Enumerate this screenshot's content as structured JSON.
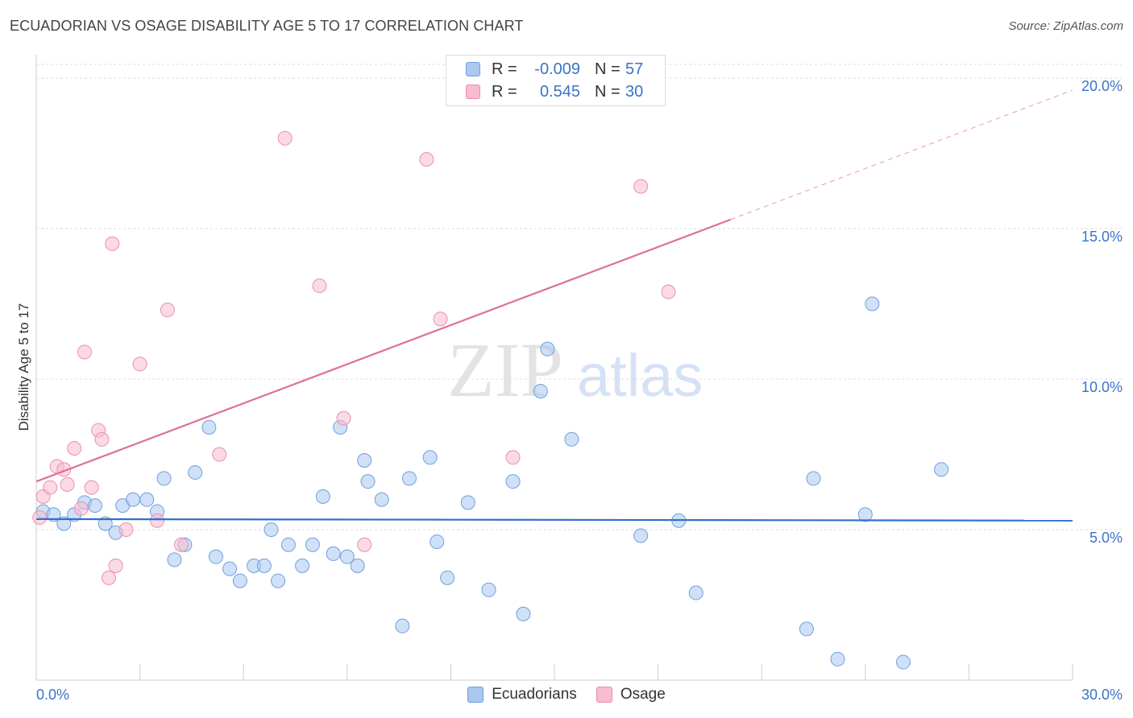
{
  "title": "ECUADORIAN VS OSAGE DISABILITY AGE 5 TO 17 CORRELATION CHART",
  "source": "Source: ZipAtlas.com",
  "watermark": {
    "zip": "ZIP",
    "atlas": "atlas"
  },
  "legend": {
    "rows": [
      {
        "r_label": "R =",
        "r_value": "-0.009",
        "n_label": "N =",
        "n_value": "57"
      },
      {
        "r_label": "R =",
        "r_value": "0.545",
        "n_label": "N =",
        "n_value": "30"
      }
    ]
  },
  "bottom_legend": {
    "series1": "Ecuadorians",
    "series2": "Osage"
  },
  "colors": {
    "ecuadorians_fill": "#aac8f0",
    "ecuadorians_stroke": "#6f9fde",
    "ecuadorians_line": "#2f6fd0",
    "osage_fill": "#f7bccd",
    "osage_stroke": "#ec8fab",
    "osage_line": "#e07098",
    "axis_label": "#3a73c9",
    "grid": "#dddddd"
  },
  "chart_data": {
    "type": "scatter",
    "title": "ECUADORIAN VS OSAGE DISABILITY AGE 5 TO 17 CORRELATION CHART",
    "xlabel": "",
    "ylabel": "Disability Age 5 to 17",
    "xlim": [
      0,
      30
    ],
    "ylim": [
      0,
      20
    ],
    "x_ticks": [
      0,
      3,
      6,
      9,
      12,
      15,
      18,
      21,
      24,
      27,
      30
    ],
    "x_tick_labels": [
      "0.0%",
      "30.0%"
    ],
    "y_ticks": [
      5,
      10,
      15,
      20
    ],
    "y_tick_labels": [
      "5.0%",
      "10.0%",
      "15.0%",
      "20.0%"
    ],
    "grid": true,
    "legend_position": "top-center",
    "series": [
      {
        "name": "Ecuadorians",
        "r": -0.009,
        "n": 57,
        "trend": {
          "x": [
            0,
            30
          ],
          "y": [
            5.35,
            5.3
          ]
        },
        "points": [
          [
            0.2,
            5.6
          ],
          [
            0.5,
            5.5
          ],
          [
            0.8,
            5.2
          ],
          [
            1.1,
            5.5
          ],
          [
            1.4,
            5.9
          ],
          [
            1.7,
            5.8
          ],
          [
            2.0,
            5.2
          ],
          [
            2.3,
            4.9
          ],
          [
            2.5,
            5.8
          ],
          [
            2.8,
            6.0
          ],
          [
            3.2,
            6.0
          ],
          [
            3.5,
            5.6
          ],
          [
            3.7,
            6.7
          ],
          [
            4.0,
            4.0
          ],
          [
            4.3,
            4.5
          ],
          [
            4.6,
            6.9
          ],
          [
            5.0,
            8.4
          ],
          [
            5.2,
            4.1
          ],
          [
            5.6,
            3.7
          ],
          [
            5.9,
            3.3
          ],
          [
            6.3,
            3.8
          ],
          [
            6.6,
            3.8
          ],
          [
            6.8,
            5.0
          ],
          [
            7.0,
            3.3
          ],
          [
            7.3,
            4.5
          ],
          [
            7.7,
            3.8
          ],
          [
            8.0,
            4.5
          ],
          [
            8.3,
            6.1
          ],
          [
            8.6,
            4.2
          ],
          [
            8.8,
            8.4
          ],
          [
            9.0,
            4.1
          ],
          [
            9.3,
            3.8
          ],
          [
            9.5,
            7.3
          ],
          [
            9.6,
            6.6
          ],
          [
            10.0,
            6.0
          ],
          [
            10.6,
            1.8
          ],
          [
            10.8,
            6.7
          ],
          [
            11.4,
            7.4
          ],
          [
            11.6,
            4.6
          ],
          [
            11.9,
            3.4
          ],
          [
            12.5,
            5.9
          ],
          [
            13.1,
            3.0
          ],
          [
            13.8,
            6.6
          ],
          [
            14.1,
            2.2
          ],
          [
            14.6,
            9.6
          ],
          [
            14.8,
            11.0
          ],
          [
            15.5,
            8.0
          ],
          [
            17.5,
            4.8
          ],
          [
            18.6,
            5.3
          ],
          [
            19.1,
            2.9
          ],
          [
            22.3,
            1.7
          ],
          [
            22.5,
            6.7
          ],
          [
            23.2,
            0.7
          ],
          [
            24.0,
            5.5
          ],
          [
            24.2,
            12.5
          ],
          [
            25.1,
            0.6
          ],
          [
            26.2,
            7.0
          ]
        ]
      },
      {
        "name": "Osage",
        "r": 0.545,
        "n": 30,
        "trend": {
          "x": [
            0,
            20.1
          ],
          "y": [
            6.6,
            15.3
          ]
        },
        "trend_extension": {
          "x": [
            20.1,
            30
          ],
          "y": [
            15.3,
            19.6
          ]
        },
        "points": [
          [
            0.1,
            5.4
          ],
          [
            0.2,
            6.1
          ],
          [
            0.4,
            6.4
          ],
          [
            0.6,
            7.1
          ],
          [
            0.8,
            7.0
          ],
          [
            0.9,
            6.5
          ],
          [
            1.1,
            7.7
          ],
          [
            1.3,
            5.7
          ],
          [
            1.4,
            10.9
          ],
          [
            1.6,
            6.4
          ],
          [
            1.8,
            8.3
          ],
          [
            1.9,
            8.0
          ],
          [
            2.1,
            3.4
          ],
          [
            2.2,
            14.5
          ],
          [
            2.3,
            3.8
          ],
          [
            2.6,
            5.0
          ],
          [
            3.0,
            10.5
          ],
          [
            3.5,
            5.3
          ],
          [
            3.8,
            12.3
          ],
          [
            4.2,
            4.5
          ],
          [
            5.3,
            7.5
          ],
          [
            7.2,
            18.0
          ],
          [
            8.2,
            13.1
          ],
          [
            8.9,
            8.7
          ],
          [
            9.5,
            4.5
          ],
          [
            11.3,
            17.3
          ],
          [
            11.7,
            12.0
          ],
          [
            13.8,
            7.4
          ],
          [
            17.5,
            16.4
          ],
          [
            18.3,
            12.9
          ]
        ]
      }
    ]
  }
}
